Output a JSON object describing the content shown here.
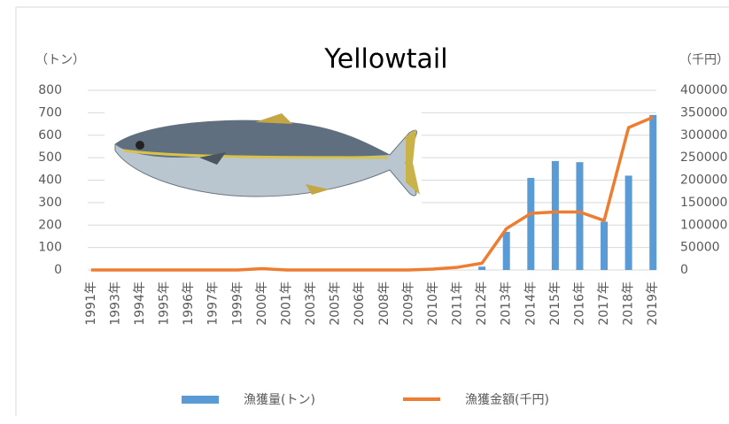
{
  "chart_data": {
    "type": "bar-line",
    "title": "Yellowtail",
    "y_label": "（トン）",
    "y2_label": "（千円）",
    "categories": [
      "1991年",
      "1993年",
      "1994年",
      "1995年",
      "1996年",
      "1997年",
      "1999年",
      "2000年",
      "2001年",
      "2003年",
      "2005年",
      "2006年",
      "2008年",
      "2009年",
      "2010年",
      "2011年",
      "2012年",
      "2013年",
      "2014年",
      "2015年",
      "2016年",
      "2017年",
      "2018年",
      "2019年"
    ],
    "series": [
      {
        "name": "漁獲量(トン)",
        "type": "bar",
        "color": "#5b9bd5",
        "values": [
          0,
          0,
          0,
          0,
          0,
          0,
          0,
          0,
          0,
          0,
          0,
          0,
          0,
          0,
          0,
          0,
          15,
          170,
          410,
          485,
          480,
          215,
          420,
          690
        ]
      },
      {
        "name": "漁獲金額(千円)",
        "type": "line",
        "axis": "y2",
        "color": "#ed7d31",
        "values": [
          0,
          0,
          0,
          0,
          0,
          0,
          0,
          3000,
          0,
          0,
          0,
          0,
          0,
          0,
          2000,
          6000,
          15000,
          92000,
          126000,
          129000,
          129000,
          110000,
          317000,
          340000
        ]
      }
    ],
    "ylim": [
      0,
      800
    ],
    "yticks": [
      0,
      100,
      200,
      300,
      400,
      500,
      600,
      700,
      800
    ],
    "y2lim": [
      0,
      400000
    ],
    "y2ticks": [
      0,
      50000,
      100000,
      150000,
      200000,
      250000,
      300000,
      350000,
      400000
    ],
    "grid": true,
    "legend": "bottom"
  }
}
